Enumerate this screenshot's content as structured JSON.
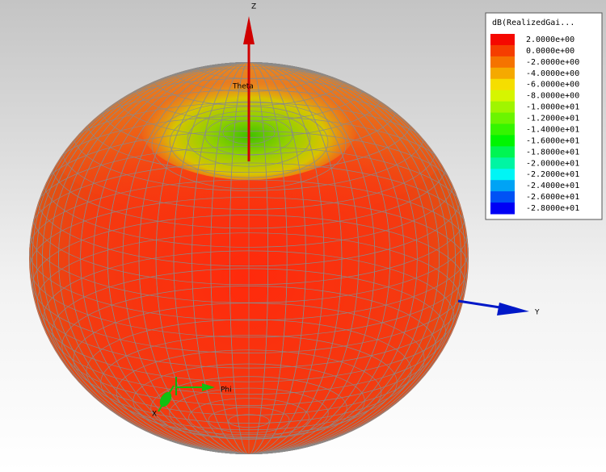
{
  "axes": {
    "z": "Z",
    "y": "Y",
    "x": "X",
    "theta": "Theta",
    "phi": "Phi"
  },
  "legend": {
    "title": "dB(RealizedGai...",
    "labels": [
      "2.0000e+00",
      "0.0000e+00",
      "-2.0000e+00",
      "-4.0000e+00",
      "-6.0000e+00",
      "-8.0000e+00",
      "-1.0000e+01",
      "-1.2000e+01",
      "-1.4000e+01",
      "-1.6000e+01",
      "-1.8000e+01",
      "-2.0000e+01",
      "-2.2000e+01",
      "-2.4000e+01",
      "-2.6000e+01",
      "-2.8000e+01"
    ]
  }
}
